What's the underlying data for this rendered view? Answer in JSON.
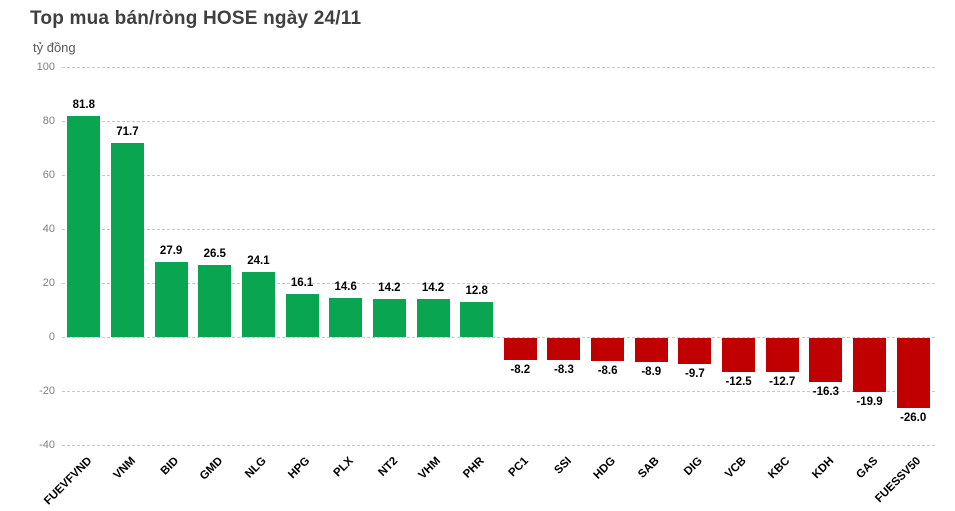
{
  "header": {
    "title": "Top mua bán/ròng HOSE ngày 24/11",
    "unit_label": "tỷ đồng"
  },
  "chart_data": {
    "type": "bar",
    "title": "Top mua bán/ròng HOSE ngày 24/11",
    "ylabel": "tỷ đồng",
    "categories": [
      "FUEVFVND",
      "VNM",
      "BID",
      "GMD",
      "NLG",
      "HPG",
      "PLX",
      "NT2",
      "VHM",
      "PHR",
      "PC1",
      "SSI",
      "HDG",
      "SAB",
      "DIG",
      "VCB",
      "KBC",
      "KDH",
      "GAS",
      "FUESSV50"
    ],
    "values": [
      81.8,
      71.7,
      27.9,
      26.5,
      24.1,
      16.1,
      14.6,
      14.2,
      14.2,
      12.8,
      -8.2,
      -8.3,
      -8.6,
      -8.9,
      -9.7,
      -12.5,
      -12.7,
      -16.3,
      -19.9,
      -26.0
    ],
    "value_labels": [
      "81.8",
      "71.7",
      "27.9",
      "26.5",
      "24.1",
      "16.1",
      "14.6",
      "14.2",
      "14.2",
      "12.8",
      "-8.2",
      "-8.3",
      "-8.6",
      "-8.9",
      "-9.7",
      "-12.5",
      "-12.7",
      "-16.3",
      "-19.9",
      "-26.0"
    ],
    "yticks": [
      100,
      80,
      60,
      40,
      20,
      0,
      -20,
      -40
    ],
    "ylim": [
      -40,
      100
    ],
    "grid": true,
    "legend": "none",
    "positive_color": "#0aa551",
    "negative_color": "#c00000"
  }
}
